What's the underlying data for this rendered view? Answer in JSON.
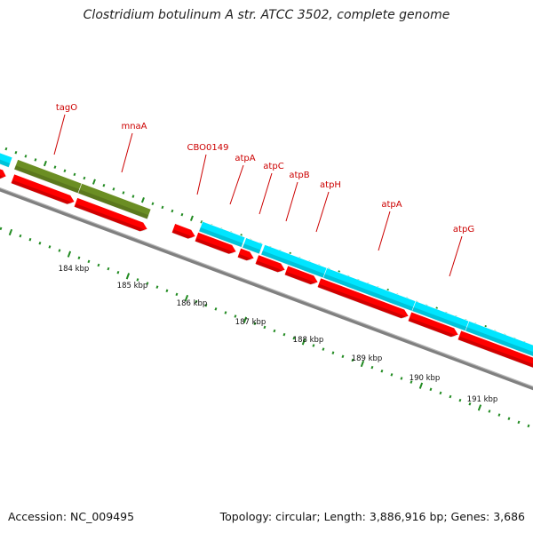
{
  "title": "Clostridium botulinum A str. ATCC 3502, complete genome",
  "footer": {
    "accession": "Accession: NC_009495",
    "summary": "Topology: circular; Length: 3,886,916 bp; Genes: 3,686"
  },
  "gene_labels": [
    "tagO",
    "mnaA",
    "CBO0149",
    "atpA",
    "atpC",
    "atpB",
    "atpH",
    "atpA",
    "atpG"
  ],
  "kbp_labels": [
    "184 kbp",
    "185 kbp",
    "186 kbp",
    "187 kbp",
    "188 kbp",
    "189 kbp",
    "190 kbp",
    "191 kbp"
  ],
  "colors": {
    "cds": "#ff0000",
    "rrna_like": "#00e5ff",
    "olive": "#6b8e23",
    "tick": "#228b22",
    "backbone": "#808080",
    "label": "#cc0000"
  }
}
